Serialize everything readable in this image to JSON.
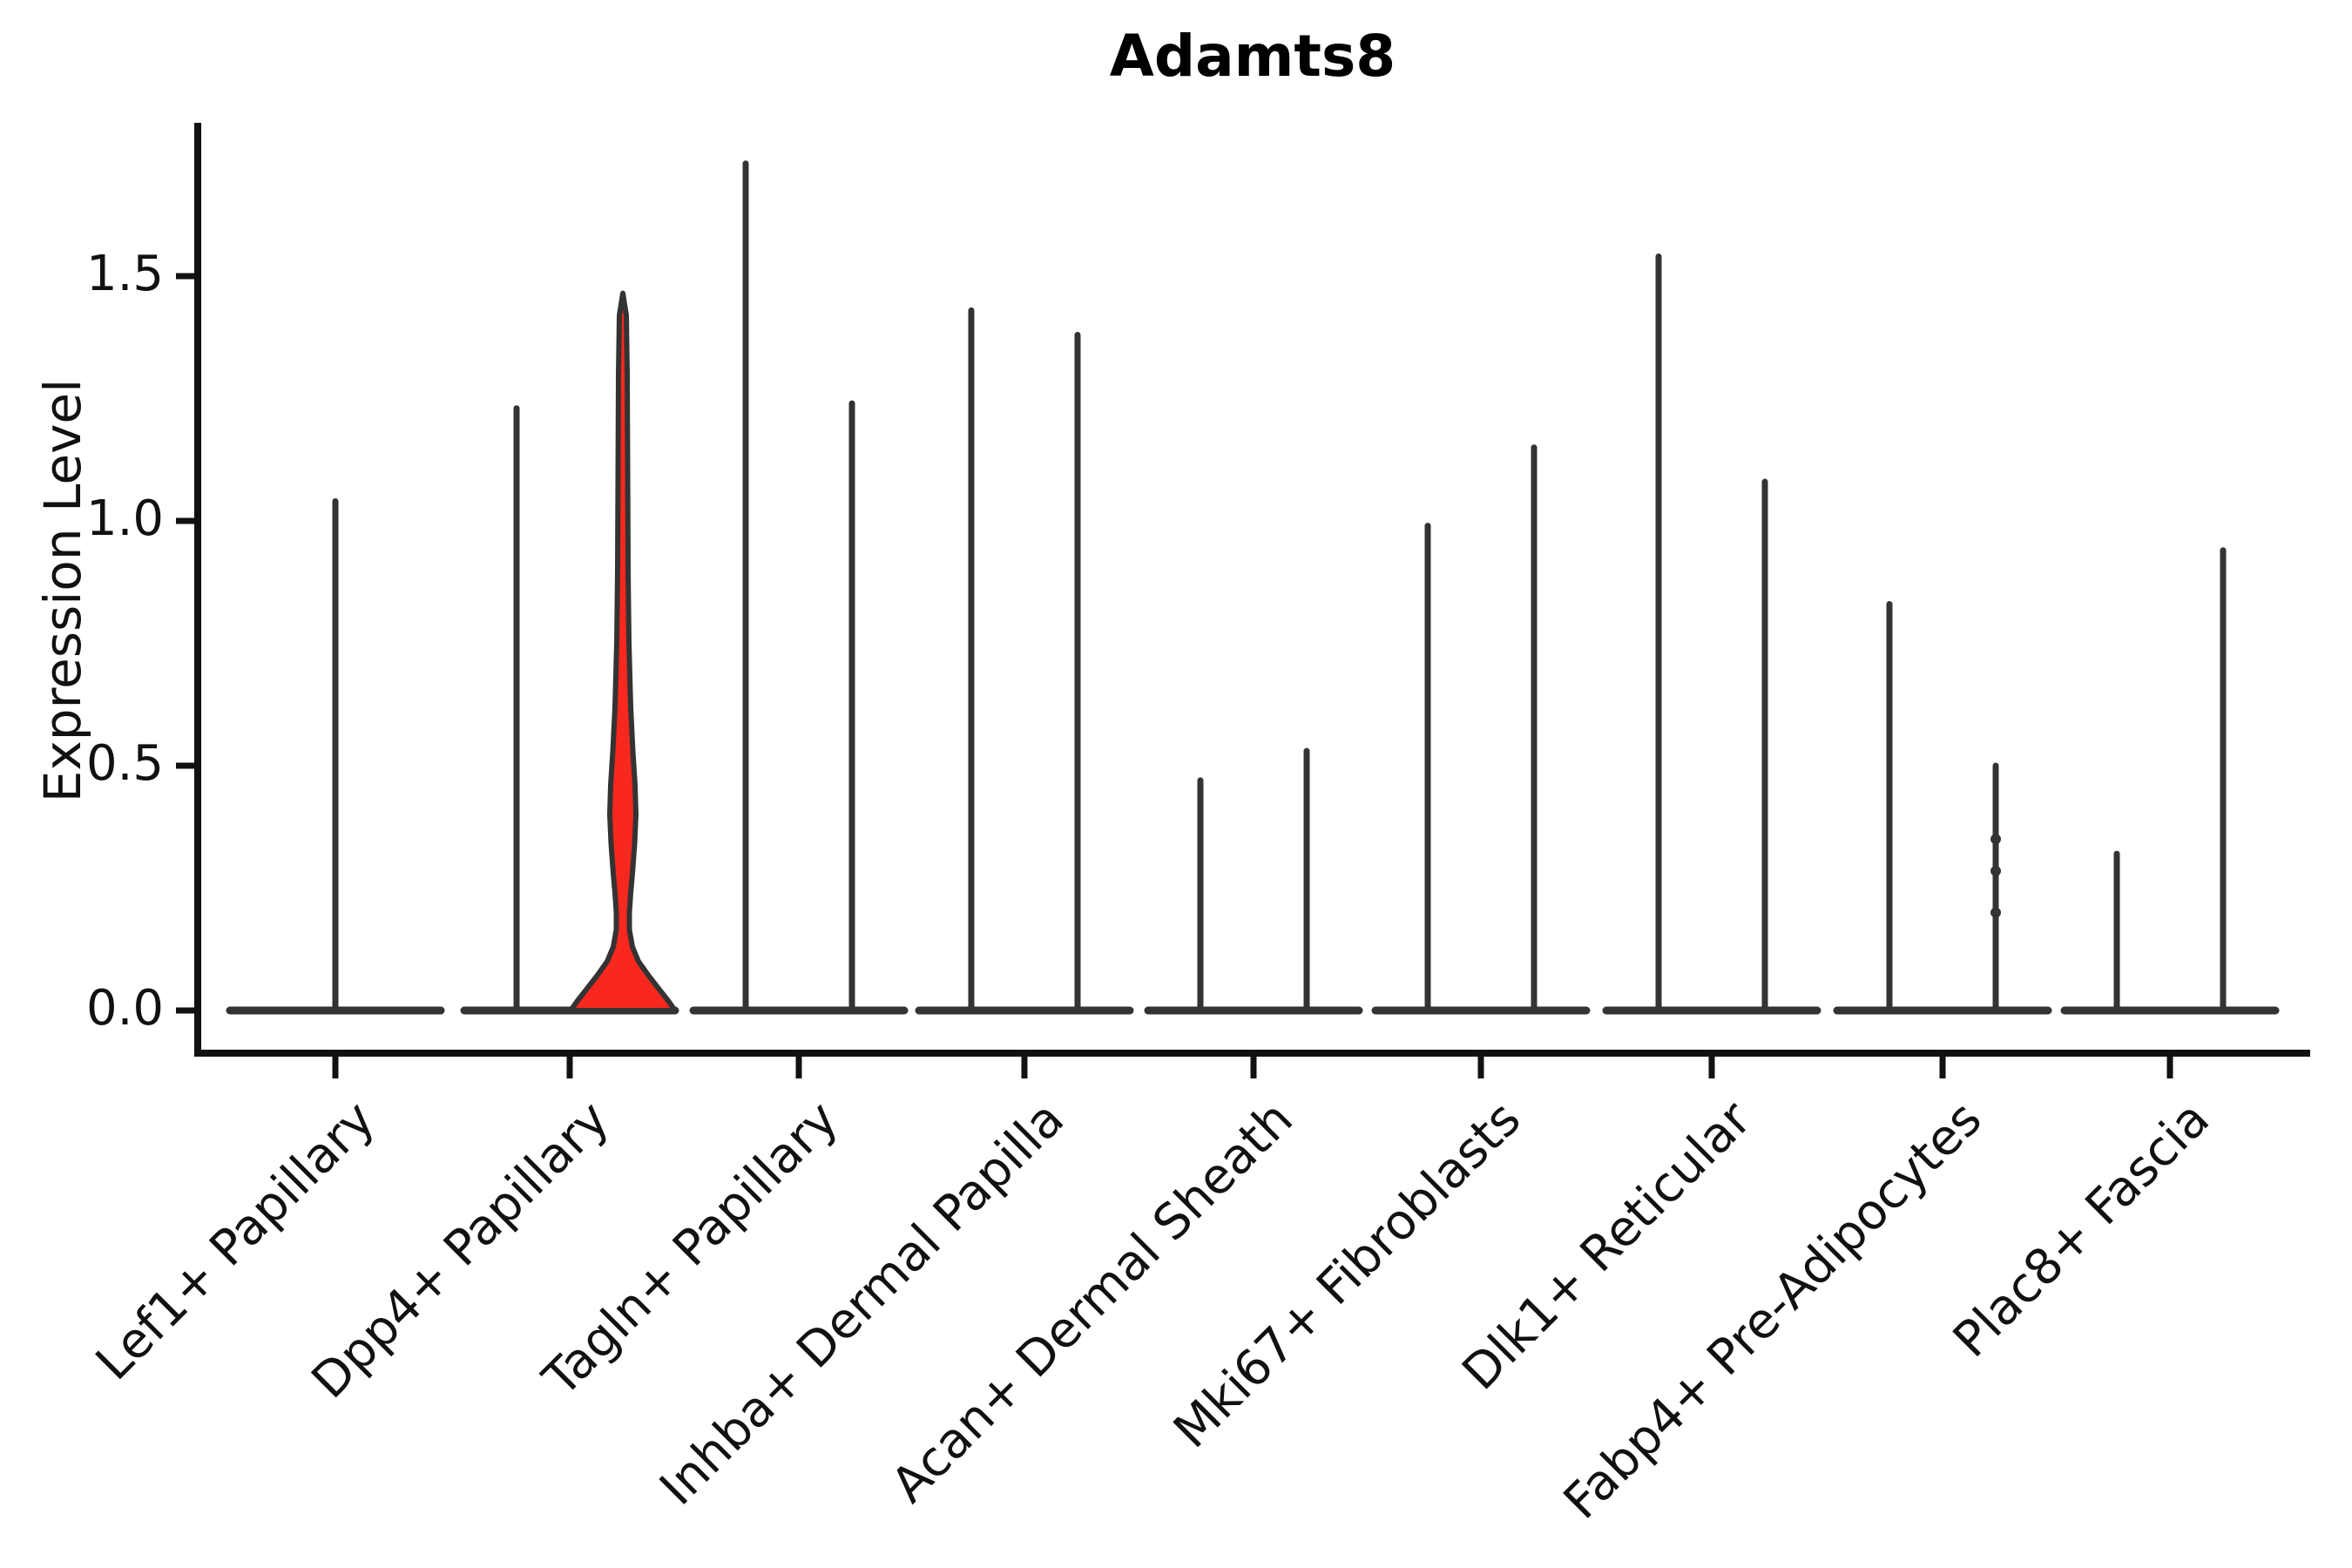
{
  "chart_data": {
    "type": "violin",
    "title": "Adamts8",
    "xlabel": "",
    "ylabel": "Expression Level",
    "ylim": [
      0,
      1.8
    ],
    "yticks": [
      "0.0",
      "0.5",
      "1.0",
      "1.5"
    ],
    "ytick_values": [
      0.0,
      0.5,
      1.0,
      1.5
    ],
    "grid": false,
    "legend_position": "none",
    "outline_color": "#333333",
    "axis_color": "#111111",
    "highlight_fill": "#f8281e",
    "categories": [
      "Lef1+ Papillary",
      "Dpp4+ Papillary",
      "Tagln+ Papillary",
      "Inhba+ Dermal Papilla",
      "Acan+ Dermal Sheath",
      "Mki67+ Fibroblasts",
      "Dlk1+ Reticular",
      "Fabp4+ Pre-Adipocytes",
      "Plac8+ Fascia"
    ],
    "groups": [
      {
        "category": "Lef1+ Papillary",
        "violins": [
          {
            "position": "center",
            "max_expression": 1.04
          }
        ]
      },
      {
        "category": "Dpp4+ Papillary",
        "violins": [
          {
            "position": "left",
            "max_expression": 1.23
          },
          {
            "position": "right",
            "max_expression": 1.47,
            "filled": true,
            "fill_color": "#f8281e"
          }
        ]
      },
      {
        "category": "Tagln+ Papillary",
        "violins": [
          {
            "position": "left",
            "max_expression": 1.73
          },
          {
            "position": "right",
            "max_expression": 1.24
          }
        ]
      },
      {
        "category": "Inhba+ Dermal Papilla",
        "violins": [
          {
            "position": "left",
            "max_expression": 1.43
          },
          {
            "position": "right",
            "max_expression": 1.38
          }
        ]
      },
      {
        "category": "Acan+ Dermal Sheath",
        "violins": [
          {
            "position": "left",
            "max_expression": 0.47
          },
          {
            "position": "right",
            "max_expression": 0.53
          }
        ]
      },
      {
        "category": "Mki67+ Fibroblasts",
        "violins": [
          {
            "position": "left",
            "max_expression": 0.99
          },
          {
            "position": "right",
            "max_expression": 1.15
          }
        ]
      },
      {
        "category": "Dlk1+ Reticular",
        "violins": [
          {
            "position": "left",
            "max_expression": 1.54
          },
          {
            "position": "right",
            "max_expression": 1.08
          }
        ]
      },
      {
        "category": "Fabp4+ Pre-Adipocytes",
        "violins": [
          {
            "position": "left",
            "max_expression": 0.83
          },
          {
            "position": "right",
            "max_expression": 0.5,
            "point_values": [
              0.35,
              0.285,
              0.2
            ]
          }
        ]
      },
      {
        "category": "Plac8+ Fascia",
        "violins": [
          {
            "position": "left",
            "max_expression": 0.32
          },
          {
            "position": "right",
            "max_expression": 0.94
          }
        ]
      }
    ],
    "highlight_violin_profile": [
      [
        1.465,
        0
      ],
      [
        1.42,
        4
      ],
      [
        1.3,
        5
      ],
      [
        1.1,
        5.5
      ],
      [
        0.9,
        6
      ],
      [
        0.75,
        7
      ],
      [
        0.62,
        9
      ],
      [
        0.53,
        11.5
      ],
      [
        0.46,
        14
      ],
      [
        0.4,
        15
      ],
      [
        0.34,
        13.5
      ],
      [
        0.28,
        11
      ],
      [
        0.24,
        9
      ],
      [
        0.2,
        7.5
      ],
      [
        0.165,
        7.5
      ],
      [
        0.13,
        11
      ],
      [
        0.1,
        18
      ],
      [
        0.07,
        30
      ],
      [
        0.045,
        41
      ],
      [
        0.02,
        52
      ],
      [
        0.005,
        58
      ],
      [
        0.0,
        60
      ]
    ]
  }
}
